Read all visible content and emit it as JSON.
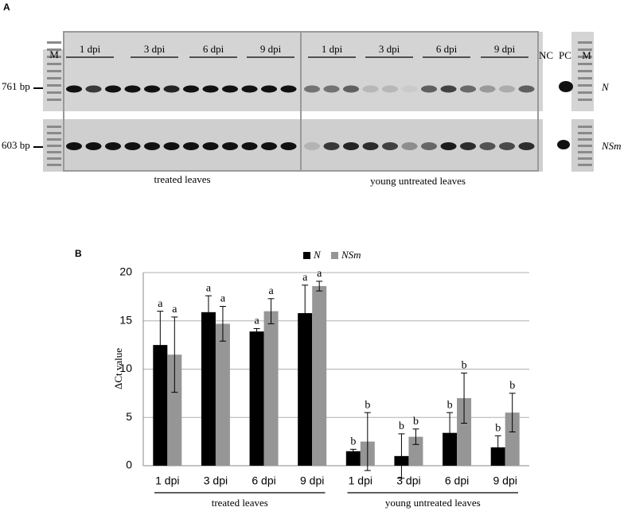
{
  "panel_a": {
    "label": "A",
    "marker_left": "M",
    "marker_right": "M",
    "nc": "NC",
    "pc": "PC",
    "size_top": "761 bp",
    "size_bottom": "603 bp",
    "gene_top": "N",
    "gene_bottom": "NSm",
    "treated_lanes": [
      "1 dpi",
      "3 dpi",
      "6 dpi",
      "9 dpi"
    ],
    "untreated_lanes": [
      "1 dpi",
      "3 dpi",
      "6 dpi",
      "9 dpi"
    ],
    "treated_label": "treated leaves",
    "untreated_label": "young untreated leaves"
  },
  "chart_data": {
    "type": "bar",
    "panel_label": "B",
    "y_label": "ΔCt value",
    "categories": [
      "1 dpi",
      "3 dpi",
      "6 dpi",
      "9 dpi",
      "1 dpi",
      "3 dpi",
      "6 dpi",
      "9 dpi"
    ],
    "groups": [
      {
        "name": "treated leaves",
        "from": 0,
        "to": 3
      },
      {
        "name": "young untreated leaves",
        "from": 4,
        "to": 7
      }
    ],
    "series": [
      {
        "name": "N",
        "color": "#000000",
        "values": [
          12.5,
          15.9,
          13.9,
          15.8,
          1.5,
          1.0,
          3.4,
          1.9
        ],
        "errors": [
          3.5,
          1.7,
          0.3,
          2.9,
          0.2,
          2.3,
          2.1,
          1.2
        ],
        "letters": [
          "a",
          "a",
          "a",
          "a",
          "b",
          "b",
          "b",
          "b"
        ]
      },
      {
        "name": "NSm",
        "color": "#969696",
        "values": [
          11.5,
          14.7,
          16.0,
          18.6,
          2.5,
          3.0,
          7.0,
          5.5
        ],
        "errors": [
          3.9,
          1.8,
          1.3,
          0.5,
          3.0,
          0.8,
          2.6,
          2.0
        ],
        "letters": [
          "a",
          "a",
          "a",
          "a",
          "b",
          "b",
          "b",
          "b"
        ]
      }
    ],
    "ylim": [
      0,
      20
    ],
    "yticks": [
      0,
      5,
      10,
      15,
      20
    ],
    "grid": true
  }
}
